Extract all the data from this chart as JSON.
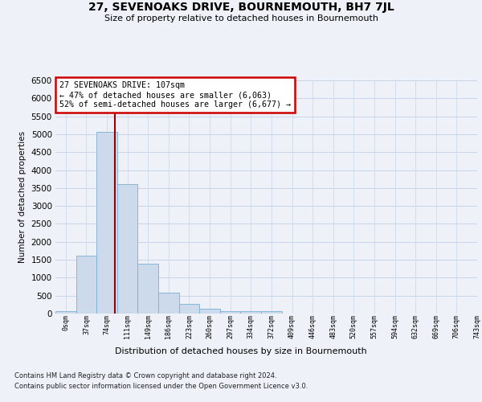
{
  "title": "27, SEVENOAKS DRIVE, BOURNEMOUTH, BH7 7JL",
  "subtitle": "Size of property relative to detached houses in Bournemouth",
  "xlabel": "Distribution of detached houses by size in Bournemouth",
  "ylabel": "Number of detached properties",
  "footnote1": "Contains HM Land Registry data © Crown copyright and database right 2024.",
  "footnote2": "Contains public sector information licensed under the Open Government Licence v3.0.",
  "bar_color": "#cddaec",
  "bar_edge_color": "#7aaed4",
  "grid_color": "#c8d4e8",
  "vline_color": "#990000",
  "annotation_box_edgecolor": "#cc0000",
  "bar_values": [
    75,
    1625,
    5075,
    3600,
    1400,
    575,
    275,
    125,
    75,
    75,
    75,
    0,
    0,
    0,
    0,
    0,
    0,
    0,
    0,
    0
  ],
  "categories": [
    "0sqm",
    "37sqm",
    "74sqm",
    "111sqm",
    "149sqm",
    "186sqm",
    "223sqm",
    "260sqm",
    "297sqm",
    "334sqm",
    "372sqm",
    "409sqm",
    "446sqm",
    "483sqm",
    "520sqm",
    "557sqm",
    "594sqm",
    "632sqm",
    "669sqm",
    "706sqm",
    "743sqm"
  ],
  "n_bars": 20,
  "ylim": [
    0,
    6500
  ],
  "yticks": [
    0,
    500,
    1000,
    1500,
    2000,
    2500,
    3000,
    3500,
    4000,
    4500,
    5000,
    5500,
    6000,
    6500
  ],
  "property_label": "27 SEVENOAKS DRIVE: 107sqm",
  "pct_smaller": 47,
  "n_smaller": 6063,
  "pct_larger_semi": 52,
  "n_larger_semi": 6677,
  "background_color": "#eef2f8"
}
